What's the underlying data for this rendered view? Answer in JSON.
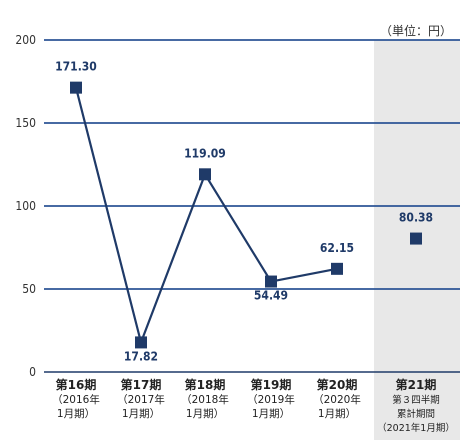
{
  "unit_label": "（単位：円）",
  "chart_data": {
    "type": "line",
    "ylim": [
      0,
      200
    ],
    "yticks": [
      0,
      50,
      100,
      150,
      200
    ],
    "categories": [
      [
        "第16期",
        "（2016年",
        "1月期）"
      ],
      [
        "第17期",
        "（2017年",
        "1月期）"
      ],
      [
        "第18期",
        "（2018年",
        "1月期）"
      ],
      [
        "第19期",
        "（2019年",
        "1月期）"
      ],
      [
        "第20期",
        "（2020年",
        "1月期）"
      ],
      [
        "第21期",
        "第３四半期",
        "累計期間",
        "（2021年1月期）"
      ]
    ],
    "series": [
      {
        "values": [
          171.3,
          17.82,
          119.09,
          54.49,
          62.15,
          null
        ],
        "labels": [
          "171.30",
          "17.82",
          "119.09",
          "54.49",
          "62.15",
          null
        ]
      },
      {
        "values": [
          null,
          null,
          null,
          null,
          null,
          80.38
        ],
        "labels": [
          null,
          null,
          null,
          null,
          null,
          "80.38"
        ]
      }
    ],
    "colors": {
      "line": "#1f3a68",
      "marker": "#1f3a68",
      "grid": "#2d5596",
      "highlight_bg": "#e8e8e8",
      "text": "#1f3a68"
    }
  }
}
